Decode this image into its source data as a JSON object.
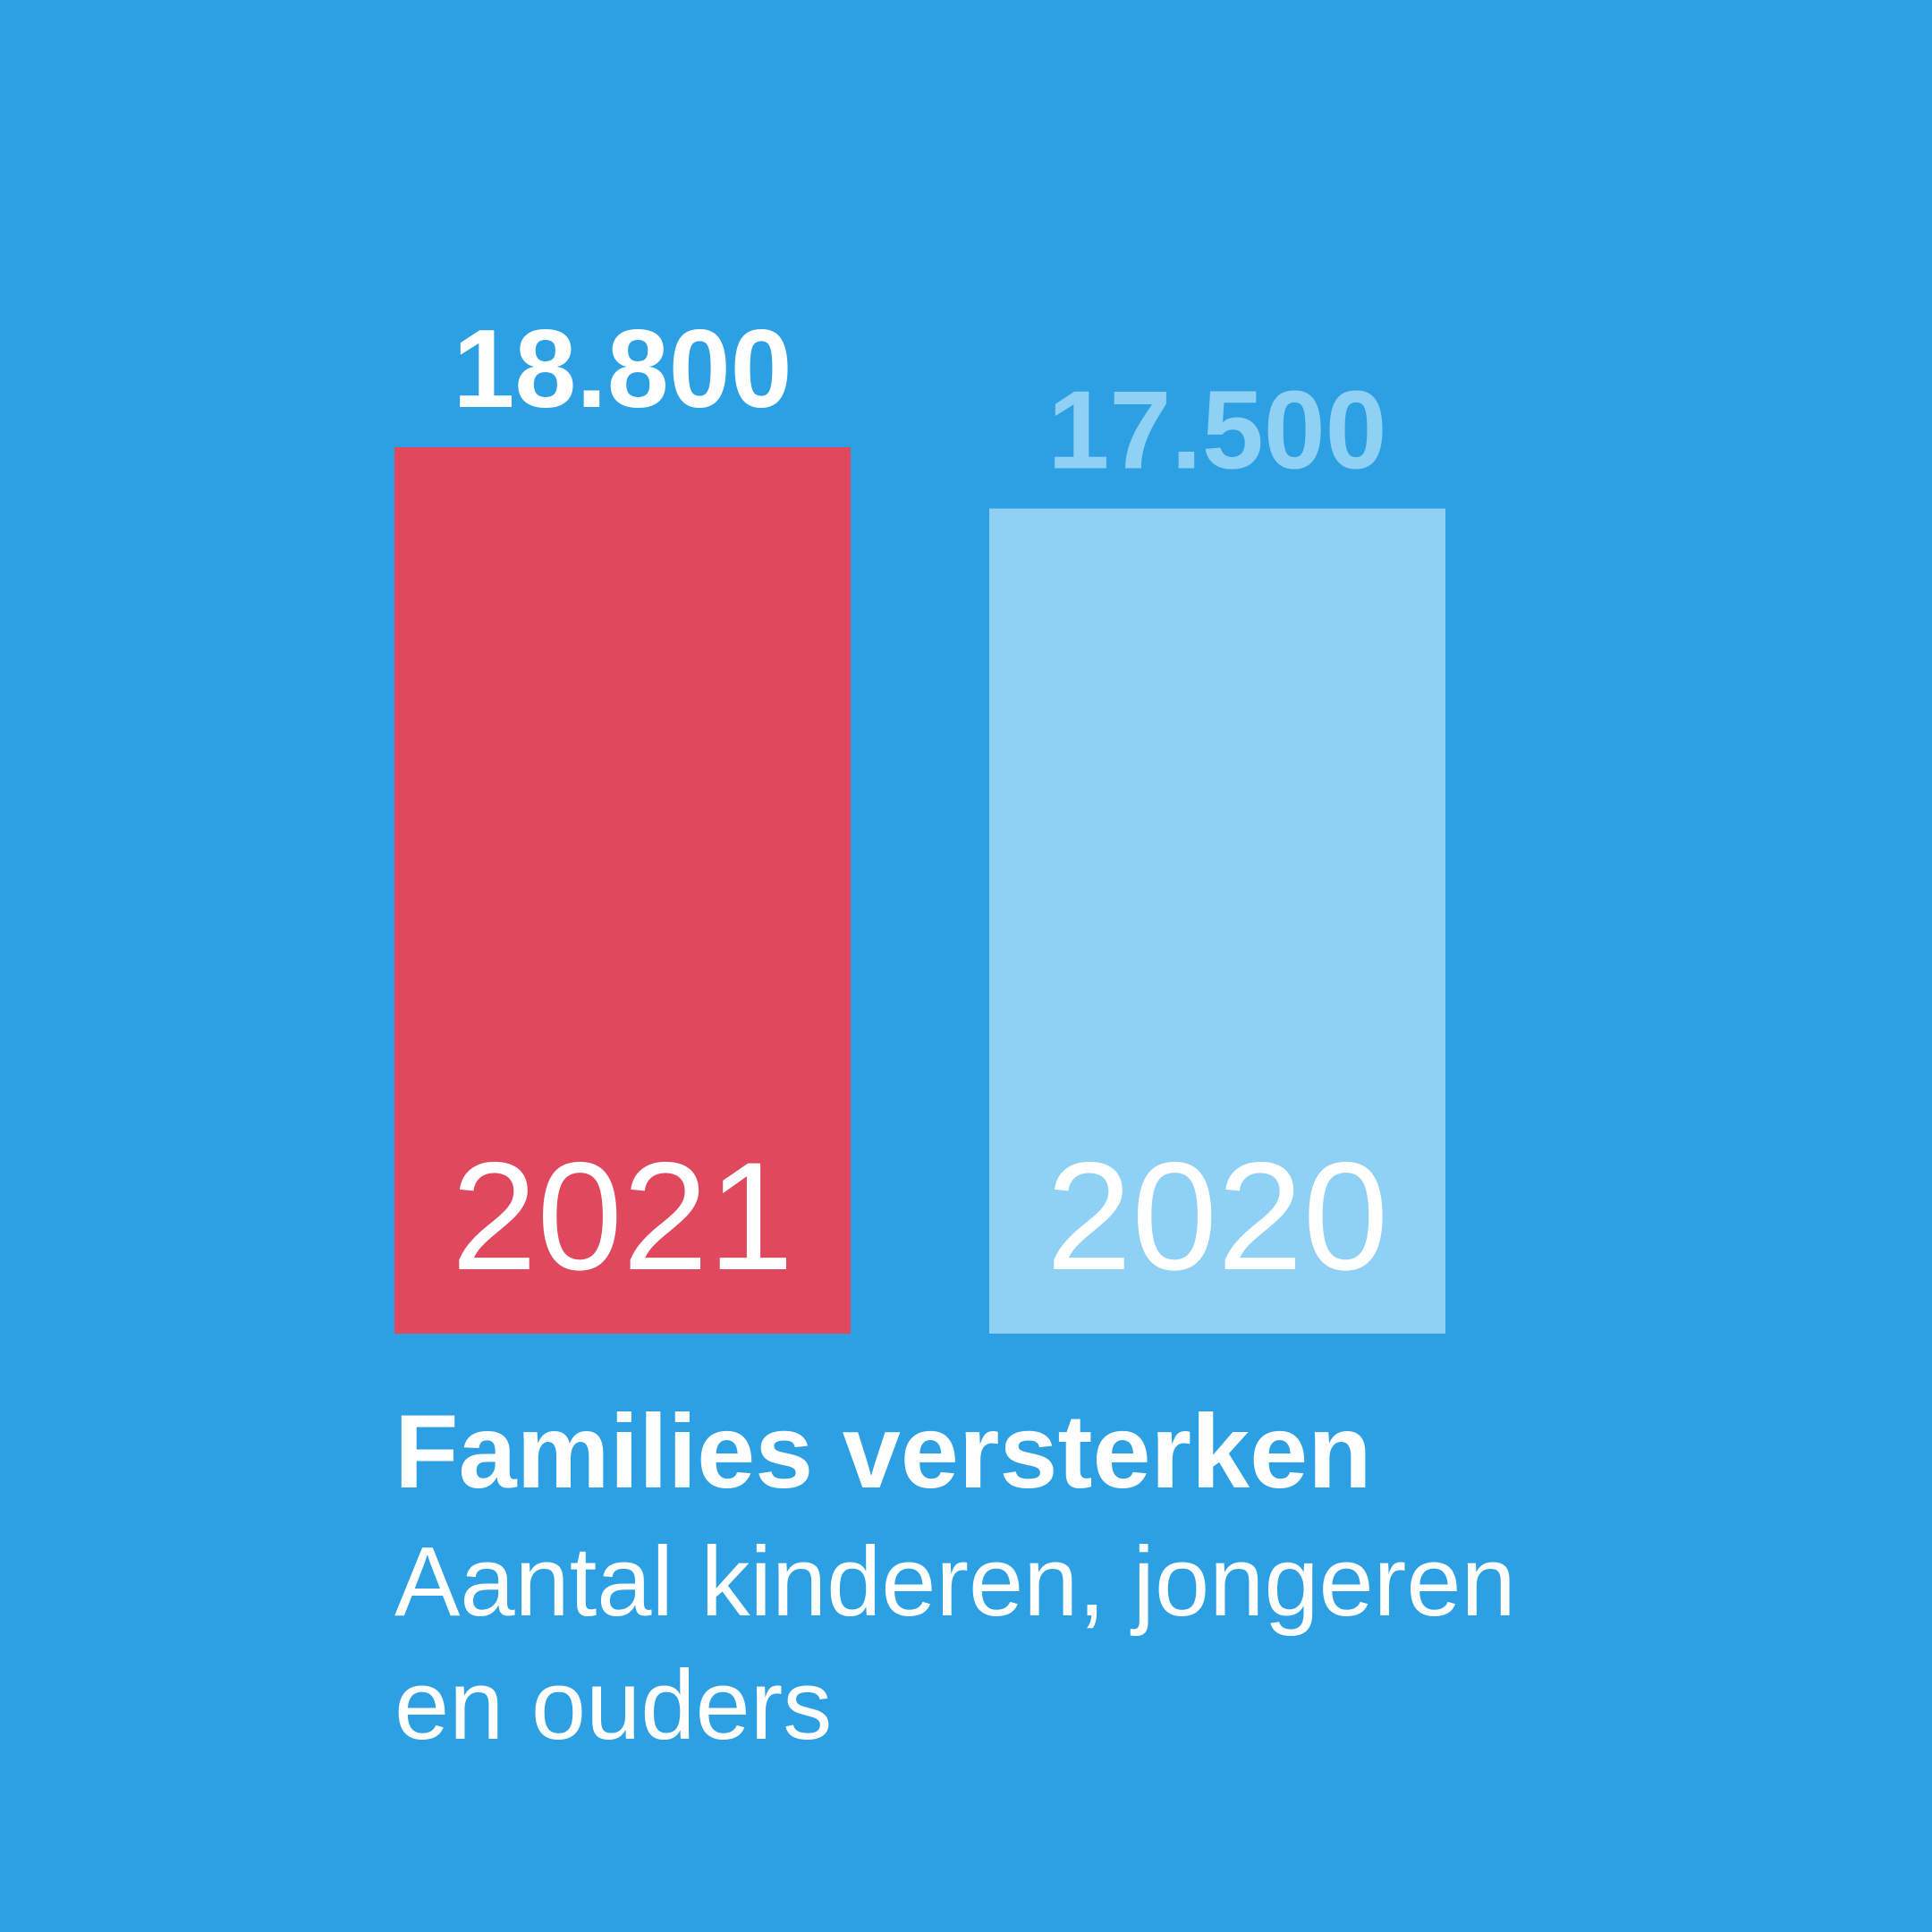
{
  "chart_data": {
    "type": "bar",
    "title": "Families versterken",
    "subtitle": "Aantal kinderen, jongeren en ouders",
    "categories": [
      "2021",
      "2020"
    ],
    "values": [
      18800,
      17500
    ],
    "value_labels": [
      "18.800",
      "17.500"
    ],
    "colors": [
      "#e0485e",
      "#8fd0f5"
    ],
    "value_label_colors": [
      "#ffffff",
      "#8fd0f5"
    ],
    "background": "#2ca0e3"
  }
}
